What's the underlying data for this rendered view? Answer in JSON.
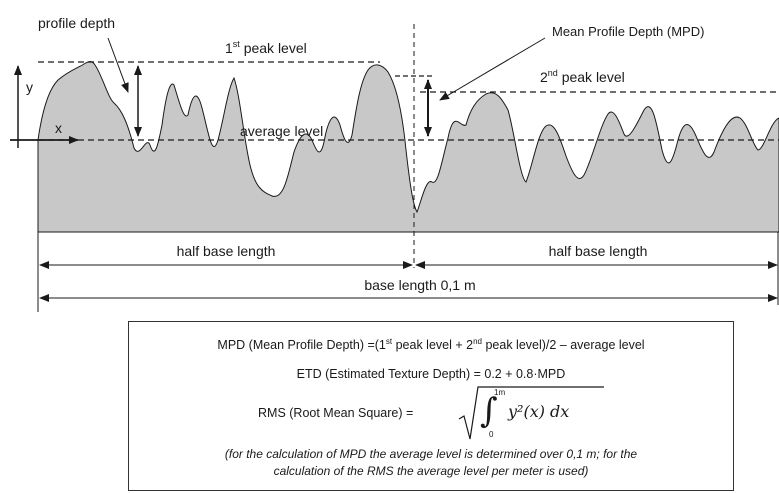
{
  "labels": {
    "profile_depth": "profile depth",
    "mpd": "Mean Profile Depth (MPD)",
    "peak1": {
      "main": "1",
      "sup": "st",
      "rest": " peak level"
    },
    "peak2": {
      "main": "2",
      "sup": "nd",
      "rest": " peak level"
    },
    "average_level": "average level",
    "y_axis": "y",
    "x_axis": "x",
    "half_base_left": "half base length",
    "half_base_right": "half base length",
    "base_length": "base length 0,1 m"
  },
  "formulas": {
    "mpd": {
      "prefix": "MPD (Mean Profile Depth) =(1",
      "sup1": "st",
      "mid": " peak level + 2",
      "sup2": "nd",
      "suffix": " peak level)/2 – average level"
    },
    "etd": "ETD (Estimated Texture Depth) = 0.2 + 0.8·MPD",
    "rms": {
      "label": "RMS (Root Mean Square) =",
      "upper_limit": "1m",
      "lower_limit": "0",
      "integrand": "y²(x) dx"
    },
    "note_line1": "(for the calculation of MPD the average level is determined over 0,1 m; for the",
    "note_line2": "calculation of the RMS the average level per meter is used)"
  },
  "colors": {
    "profile_fill": "#c8c8c8",
    "line": "#1a1a1a"
  }
}
